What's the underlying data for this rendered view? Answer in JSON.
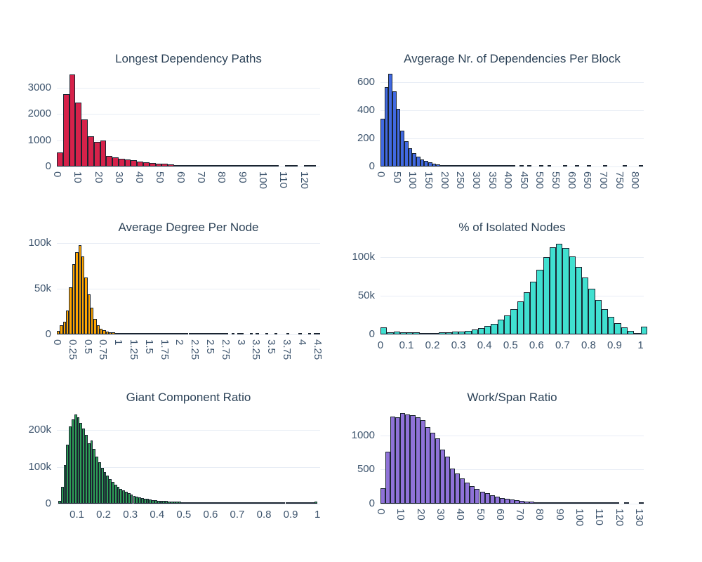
{
  "page": {
    "background": "#ffffff",
    "grid_color": "#e8edf5",
    "text_color": "#3e556e",
    "title_color": "#2c4257",
    "bar_edge_color": "#1a2430"
  },
  "chart_data": [
    {
      "type": "bar",
      "title": "Longest Dependency Paths",
      "color": "#d6224a",
      "bin_start": 0,
      "bin_width": 3,
      "xlim": [
        0,
        128
      ],
      "ylim": [
        0,
        3700
      ],
      "x_ticks_rotated": true,
      "x_tick_values": [
        0,
        10,
        20,
        30,
        40,
        50,
        60,
        70,
        80,
        90,
        100,
        110,
        120
      ],
      "x_tick_labels": [
        "0",
        "10",
        "20",
        "30",
        "40",
        "50",
        "60",
        "70",
        "80",
        "90",
        "100",
        "110",
        "120"
      ],
      "y_tick_values": [
        0,
        1000,
        2000,
        3000
      ],
      "y_tick_labels": [
        "0",
        "1000",
        "2000",
        "3000"
      ],
      "values": [
        550,
        2750,
        3500,
        2450,
        1800,
        1150,
        950,
        1000,
        400,
        345,
        300,
        270,
        230,
        195,
        165,
        140,
        115,
        95,
        80,
        65,
        55,
        48,
        40,
        34,
        28,
        24,
        20,
        17,
        15,
        13,
        11,
        9,
        8,
        7,
        6,
        5,
        0,
        4,
        4,
        0,
        3,
        3
      ]
    },
    {
      "type": "bar",
      "title": "Avgerage Nr. of Dependencies Per Block",
      "color": "#4169e1",
      "bin_start": 0,
      "bin_width": 12.5,
      "xlim": [
        0,
        828
      ],
      "ylim": [
        0,
        690
      ],
      "x_ticks_rotated": true,
      "x_tick_values": [
        0,
        50,
        100,
        150,
        200,
        250,
        300,
        350,
        400,
        450,
        500,
        550,
        600,
        650,
        700,
        750,
        800
      ],
      "x_tick_labels": [
        "0",
        "50",
        "100",
        "150",
        "200",
        "250",
        "300",
        "350",
        "400",
        "450",
        "500",
        "550",
        "600",
        "650",
        "700",
        "750",
        "800"
      ],
      "y_tick_values": [
        0,
        200,
        400,
        600
      ],
      "y_tick_labels": [
        "0",
        "200",
        "400",
        "600"
      ],
      "values": [
        340,
        565,
        660,
        535,
        410,
        255,
        180,
        130,
        95,
        70,
        52,
        38,
        28,
        21,
        16,
        12,
        9,
        7,
        6,
        5,
        4,
        4,
        3,
        3,
        2,
        2,
        2,
        2,
        1,
        1,
        1,
        1,
        1,
        1,
        0,
        1,
        0,
        1,
        0,
        0,
        1,
        0,
        1,
        0,
        0,
        0,
        1,
        0,
        0,
        1,
        0,
        0,
        1,
        0,
        0,
        0,
        1,
        0,
        0,
        0,
        0,
        1,
        0,
        0,
        0,
        1
      ]
    },
    {
      "type": "bar",
      "title": "Average Degree Per Node",
      "color": "#ffa500",
      "bin_start": 0,
      "bin_width": 0.05,
      "xlim": [
        0,
        4.3
      ],
      "ylim": [
        0,
        105
      ],
      "x_ticks_rotated": true,
      "x_tick_values": [
        0,
        0.25,
        0.5,
        0.75,
        1,
        1.25,
        1.5,
        1.75,
        2,
        2.25,
        2.5,
        2.75,
        3,
        3.25,
        3.5,
        3.75,
        4,
        4.25
      ],
      "x_tick_labels": [
        "0",
        "0.25",
        "0.5",
        "0.75",
        "1",
        "1.25",
        "1.5",
        "1.75",
        "2",
        "2.25",
        "2.5",
        "2.75",
        "3",
        "3.25",
        "3.5",
        "3.75",
        "4",
        "4.25"
      ],
      "y_tick_values": [
        0,
        50,
        100
      ],
      "y_tick_labels": [
        "0",
        "50k",
        "100k"
      ],
      "values": [
        4,
        10,
        14,
        26,
        51,
        77,
        90,
        97,
        85,
        62,
        44,
        29,
        17,
        10,
        6.5,
        4.5,
        3.2,
        2.5,
        2,
        1.7,
        1.5,
        1.3,
        1.2,
        1.1,
        1,
        0.9,
        0.8,
        0.8,
        0.7,
        0.7,
        0.6,
        0.6,
        0.5,
        0.5,
        0.5,
        0.4,
        0.4,
        0.3,
        0.3,
        0.3,
        0.3,
        0.2,
        0.2,
        0.2,
        0.2,
        0.2,
        0.2,
        0.2,
        0.1,
        0.1,
        0.1,
        0.1,
        0.1,
        0.1,
        0.1,
        0.1,
        0,
        0.1,
        0,
        0.1,
        0.1,
        0,
        0,
        0.1,
        0,
        0.1,
        0,
        0,
        0.1,
        0,
        0,
        0.1,
        0,
        0,
        0,
        0.1,
        0,
        0,
        0,
        0.1,
        0,
        0,
        0.1,
        0,
        0.1,
        0.1
      ]
    },
    {
      "type": "bar",
      "title": "% of Isolated Nodes",
      "color": "#40e0d0",
      "bin_start": 0,
      "bin_width": 0.025,
      "xlim": [
        0,
        1.012
      ],
      "ylim": [
        0,
        125
      ],
      "x_ticks_rotated": false,
      "x_tick_values": [
        0,
        0.1,
        0.2,
        0.3,
        0.4,
        0.5,
        0.6,
        0.7,
        0.8,
        0.9,
        1
      ],
      "x_tick_labels": [
        "0",
        "0.1",
        "0.2",
        "0.3",
        "0.4",
        "0.5",
        "0.6",
        "0.7",
        "0.8",
        "0.9",
        "1"
      ],
      "y_tick_values": [
        0,
        50,
        100
      ],
      "y_tick_labels": [
        "0",
        "50k",
        "100k"
      ],
      "values": [
        9,
        3,
        3.5,
        3,
        2.5,
        2.5,
        2,
        2,
        2,
        2.5,
        3,
        3.5,
        4,
        5,
        6.5,
        8.5,
        11,
        14,
        19,
        25,
        33,
        43,
        55,
        68,
        84,
        100,
        113,
        118,
        112,
        101,
        88,
        74,
        59,
        45,
        33,
        23,
        15,
        9,
        5,
        2,
        10
      ]
    },
    {
      "type": "bar",
      "title": "Giant Component Ratio",
      "color": "#2e9e57",
      "bin_start": 0.03,
      "bin_width": 0.01,
      "xlim": [
        0.025,
        1.01
      ],
      "ylim": [
        0,
        260
      ],
      "x_ticks_rotated": false,
      "x_tick_values": [
        0.1,
        0.2,
        0.3,
        0.4,
        0.5,
        0.6,
        0.7,
        0.8,
        0.9,
        1
      ],
      "x_tick_labels": [
        "0.1",
        "0.2",
        "0.3",
        "0.4",
        "0.5",
        "0.6",
        "0.7",
        "0.8",
        "0.9",
        "1"
      ],
      "y_tick_values": [
        0,
        100,
        200
      ],
      "y_tick_labels": [
        "0",
        "100k",
        "200k"
      ],
      "values": [
        8,
        45,
        105,
        160,
        210,
        230,
        243,
        235,
        220,
        205,
        188,
        164,
        172,
        150,
        128,
        112,
        98,
        86,
        76,
        67,
        59,
        52,
        46,
        41,
        36,
        32,
        28,
        25,
        22,
        20,
        17.5,
        15.5,
        14,
        12.5,
        11,
        10,
        9,
        8.5,
        8,
        7.5,
        7,
        6.5,
        6,
        5.5,
        5,
        5,
        4.5,
        4.5,
        4,
        4,
        3.5,
        3.5,
        3.5,
        3,
        3,
        3,
        3,
        2.5,
        2.5,
        2.5,
        2.5,
        2.5,
        2,
        2,
        2,
        2,
        2,
        2,
        2,
        1.5,
        1.5,
        1.5,
        1.5,
        1.5,
        1.5,
        1.5,
        1.5,
        1.5,
        1,
        1,
        1,
        1,
        1,
        1,
        1,
        1,
        1,
        1,
        1,
        1,
        0.8,
        0.8,
        0.8,
        0.8,
        0.8,
        0.8,
        6
      ]
    },
    {
      "type": "bar",
      "title": "Work/Span Ratio",
      "color": "#8f72d8",
      "bin_start": 0,
      "bin_width": 2.5,
      "xlim": [
        0,
        132.5
      ],
      "ylim": [
        0,
        1400
      ],
      "x_ticks_rotated": true,
      "x_tick_values": [
        0,
        10,
        20,
        30,
        40,
        50,
        60,
        70,
        80,
        90,
        100,
        110,
        120,
        130
      ],
      "x_tick_labels": [
        "0",
        "10",
        "20",
        "30",
        "40",
        "50",
        "60",
        "70",
        "80",
        "90",
        "100",
        "110",
        "120",
        "130"
      ],
      "y_tick_values": [
        0,
        500,
        1000
      ],
      "y_tick_labels": [
        "0",
        "500",
        "1000"
      ],
      "values": [
        230,
        760,
        1280,
        1265,
        1330,
        1310,
        1295,
        1265,
        1225,
        1120,
        1045,
        960,
        790,
        690,
        515,
        445,
        370,
        310,
        260,
        215,
        180,
        150,
        122,
        100,
        84,
        70,
        57,
        47,
        39,
        32,
        26,
        21,
        17,
        14,
        11,
        9,
        8,
        6,
        5,
        5,
        4,
        3,
        3,
        2,
        2,
        2,
        1,
        1,
        0,
        1,
        0,
        0,
        1
      ]
    }
  ]
}
